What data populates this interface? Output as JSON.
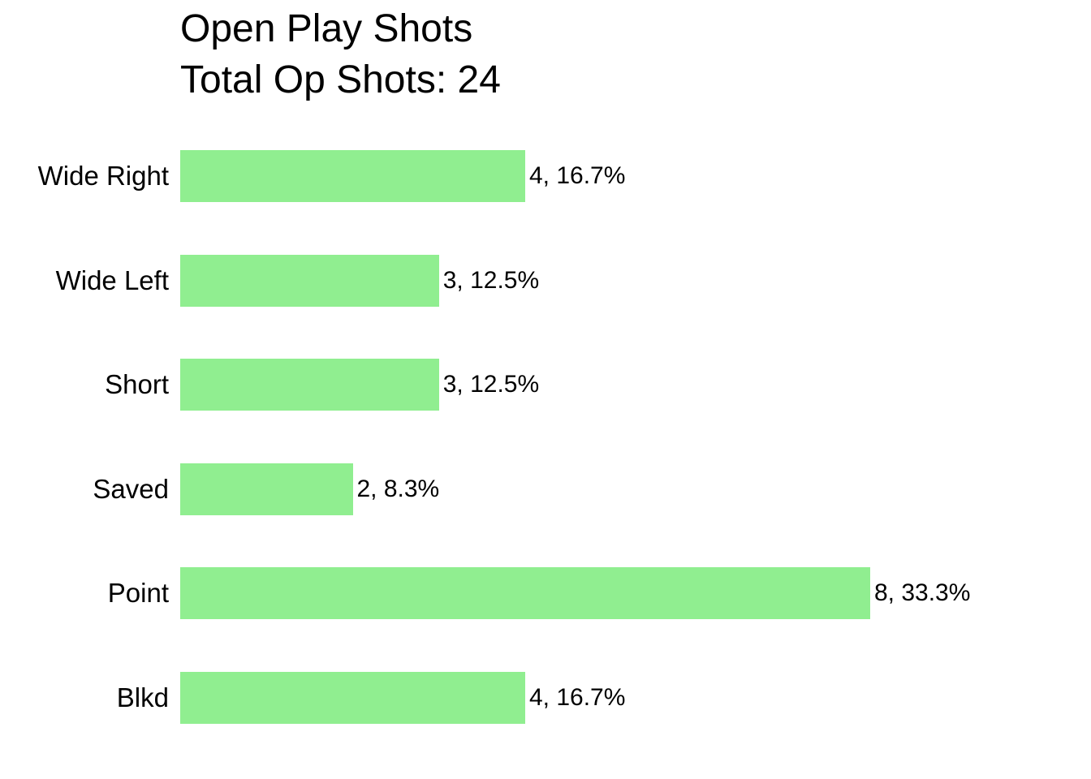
{
  "chart_data": {
    "type": "bar",
    "orientation": "horizontal",
    "title": "Open Play Shots",
    "subtitle": "Total Op Shots: 24",
    "total_shots": 24,
    "categories": [
      "Wide Right",
      "Wide Left",
      "Short",
      "Saved",
      "Point",
      "Blkd"
    ],
    "values": [
      4,
      3,
      3,
      2,
      8,
      4
    ],
    "percents": [
      "16.7%",
      "12.5%",
      "12.5%",
      "8.3%",
      "33.3%",
      "16.7%"
    ],
    "data_labels": [
      "4, 16.7%",
      "3, 12.5%",
      "3, 12.5%",
      "2, 8.3%",
      "8, 33.3%",
      "4, 16.7%"
    ],
    "bar_color": "#90EE90",
    "text_color": "#000000",
    "background_color": "#FFFFFF",
    "xlim": [
      0,
      10.3
    ],
    "grid": false,
    "axes_visible": false,
    "legend": "none"
  }
}
